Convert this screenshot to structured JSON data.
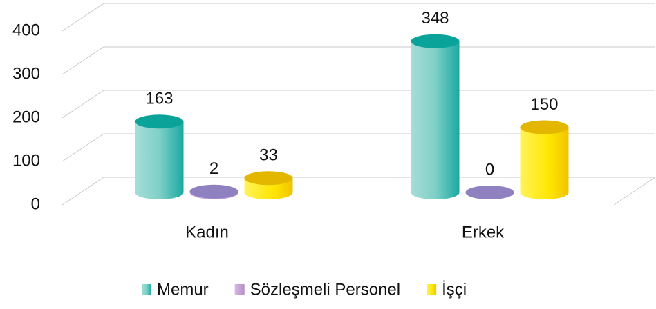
{
  "chart_data": {
    "type": "bar3d",
    "categories": [
      "Kadın",
      "Erkek"
    ],
    "series": [
      {
        "name": "Memur",
        "color": "#1bb3a8",
        "values": [
          163,
          348
        ]
      },
      {
        "name": "Sözleşmeli Personel",
        "color": "#9b8dc8",
        "values": [
          2,
          0
        ]
      },
      {
        "name": "İşçi",
        "color": "#ffe600",
        "values": [
          33,
          150
        ]
      }
    ],
    "ylim": [
      0,
      400
    ],
    "yticks": [
      0,
      100,
      200,
      300,
      400
    ],
    "grid": true,
    "legend": "bottom"
  }
}
